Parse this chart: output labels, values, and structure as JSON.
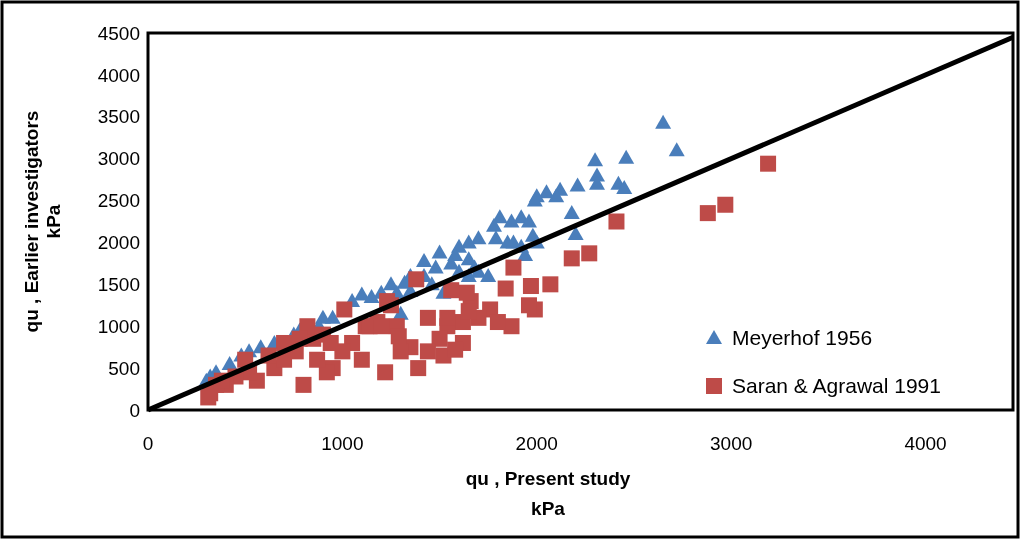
{
  "chart_data": {
    "type": "scatter",
    "xlabel": "qu , Present study\nkPa",
    "ylabel": "qu , Earlier investigators\nkPa",
    "xlim": [
      0,
      4450
    ],
    "ylim": [
      0,
      4500
    ],
    "xticks": [
      0,
      1000,
      2000,
      3000,
      4000
    ],
    "yticks": [
      0,
      500,
      1000,
      1500,
      2000,
      2500,
      3000,
      3500,
      4000,
      4500
    ],
    "grid": false,
    "legend": "bottom right",
    "series": [
      {
        "name": "Meyerhof 1956",
        "color": "#4a7ebb",
        "marker": "triangle",
        "x": [
          2650,
          2720,
          2460,
          2300,
          2310,
          2310,
          2420,
          2450,
          2210,
          2180,
          2200,
          2120,
          2050,
          2000,
          2100,
          1990,
          1920,
          1870,
          1810,
          1780,
          1790,
          1850,
          1960,
          1980,
          2000,
          1920,
          1880,
          1940,
          1700,
          1650,
          1600,
          1580,
          1650,
          1700,
          1750,
          1680,
          1560,
          1500,
          1480,
          1420,
          1460,
          1520,
          1420,
          1350,
          1320,
          1250,
          1280,
          1200,
          1150,
          1100,
          1050,
          950,
          900,
          880,
          780,
          750,
          650,
          580,
          520,
          480,
          420,
          350,
          320,
          300,
          1300,
          1350,
          1600,
          1650
        ],
        "values": [
          3430,
          3100,
          3010,
          2980,
          2800,
          2700,
          2700,
          2650,
          2680,
          2350,
          2100,
          2630,
          2600,
          2550,
          2550,
          2500,
          2300,
          2250,
          2300,
          2200,
          2050,
          2000,
          2250,
          2080,
          2000,
          1950,
          2000,
          1850,
          2050,
          2000,
          1950,
          1850,
          1800,
          1650,
          1600,
          1700,
          1750,
          1880,
          1700,
          1600,
          1500,
          1400,
          1780,
          1600,
          1520,
          1500,
          1400,
          1400,
          1350,
          1380,
          1300,
          1100,
          1100,
          1000,
          950,
          900,
          800,
          750,
          700,
          650,
          550,
          450,
          400,
          350,
          1150,
          1420,
          1650,
          1600
        ]
      },
      {
        "name": "Saran & Agrawal 1991",
        "color": "#be4b48",
        "marker": "square",
        "x": [
          3190,
          2880,
          2970,
          2410,
          2270,
          2180,
          2070,
          1990,
          1960,
          1970,
          1880,
          1840,
          1870,
          1760,
          1700,
          1660,
          1640,
          1560,
          1620,
          1620,
          1540,
          1520,
          1500,
          1440,
          1440,
          1390,
          1380,
          1350,
          1280,
          1300,
          1250,
          1230,
          1180,
          1220,
          1120,
          1100,
          1050,
          1010,
          1000,
          950,
          920,
          870,
          850,
          820,
          800,
          760,
          700,
          650,
          620,
          560,
          520,
          500,
          450,
          400,
          350,
          320,
          310,
          380,
          700,
          900,
          1140,
          940,
          780,
          1290,
          1540,
          1650,
          1800,
          1580,
          1200
        ],
        "values": [
          2940,
          2350,
          2450,
          2250,
          1870,
          1810,
          1500,
          1200,
          1250,
          1480,
          1700,
          1450,
          1000,
          1200,
          1100,
          1300,
          1400,
          1430,
          1050,
          800,
          1000,
          650,
          850,
          1100,
          700,
          500,
          1560,
          750,
          1000,
          700,
          1250,
          1300,
          1050,
          450,
          1000,
          600,
          800,
          1200,
          700,
          500,
          450,
          600,
          850,
          1000,
          300,
          700,
          800,
          500,
          650,
          350,
          450,
          600,
          400,
          300,
          300,
          200,
          150,
          350,
          600,
          900,
          1000,
          800,
          850,
          880,
          1100,
          1180,
          1050,
          720,
          1000
        ]
      },
      {
        "type": "line",
        "color": "#000000",
        "x": [
          0,
          4450
        ],
        "values": [
          0,
          4450
        ]
      }
    ]
  }
}
